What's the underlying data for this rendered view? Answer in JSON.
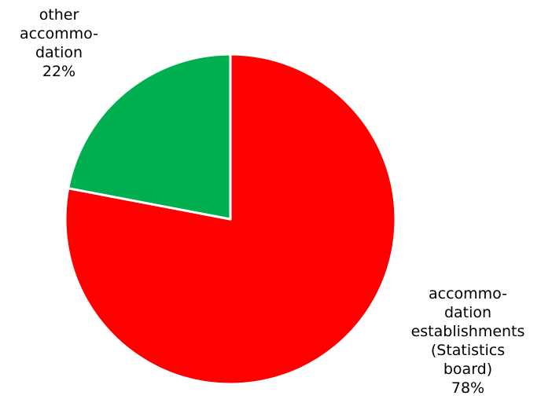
{
  "chart_data": {
    "type": "pie",
    "start_angle_deg": 0,
    "direction": "clockwise",
    "slices": [
      {
        "label_lines": [
          "accommo-",
          "dation",
          "establishments",
          "(Statistics",
          "board)"
        ],
        "value": 78,
        "value_label": "78%",
        "color": "#ff0000"
      },
      {
        "label_lines": [
          "other",
          "accommo-",
          "dation"
        ],
        "value": 22,
        "value_label": "22%",
        "color": "#00b050"
      }
    ],
    "legend": "none"
  }
}
